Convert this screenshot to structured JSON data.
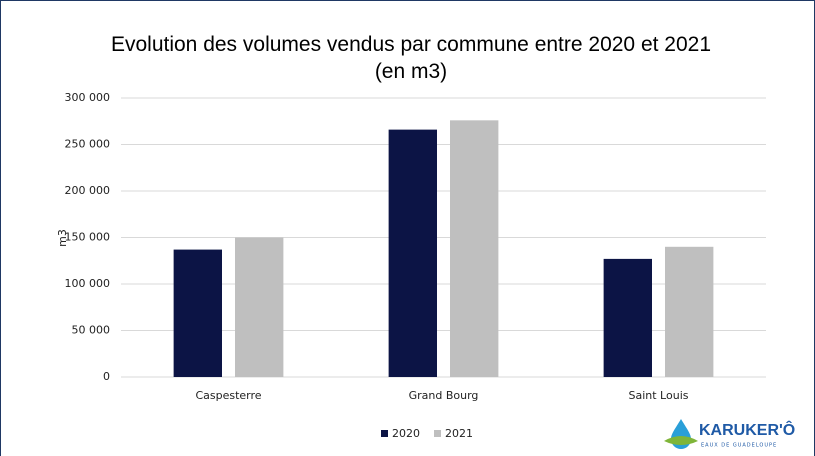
{
  "chart_data": {
    "type": "bar",
    "title": "Evolution des volumes vendus par commune entre 2020 et 2021 (en m3)",
    "y_label": "m3",
    "categories": [
      "Caspesterre",
      "Grand Bourg",
      "Saint Louis"
    ],
    "series": [
      {
        "name": "2020",
        "color": "#0c1445",
        "values": [
          137000,
          266000,
          127000
        ]
      },
      {
        "name": "2021",
        "color": "#bfbfbf",
        "values": [
          150000,
          276000,
          140000
        ]
      }
    ],
    "ylim": [
      0,
      300000
    ],
    "yticks": [
      0,
      {
        "value": 50000,
        "label": "50 000"
      },
      {
        "value": 100000,
        "label": "100 000"
      },
      {
        "value": 150000,
        "label": "150 000"
      },
      {
        "value": 200000,
        "label": "200 000"
      },
      {
        "value": 250000,
        "label": "250 000"
      },
      {
        "value": 300000,
        "label": "300 000"
      }
    ],
    "grid": true,
    "legend": "bottom",
    "logo": "KARUKER'Ô",
    "logo_tagline": "EAUX DE GUADELOUPE"
  }
}
